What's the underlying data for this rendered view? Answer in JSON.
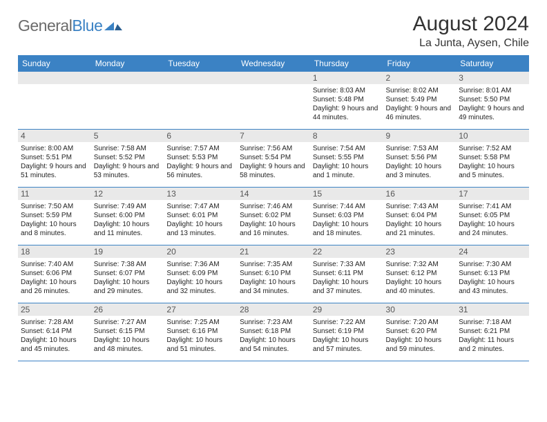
{
  "logo": {
    "part1": "General",
    "part2": "Blue"
  },
  "title": "August 2024",
  "location": "La Junta, Aysen, Chile",
  "colors": {
    "accent": "#3b82c4",
    "header_bg": "#3b82c4",
    "header_text": "#ffffff",
    "daynum_bg": "#e9e9e9",
    "text": "#222222",
    "logo_gray": "#6b6b6b"
  },
  "weekdays": [
    "Sunday",
    "Monday",
    "Tuesday",
    "Wednesday",
    "Thursday",
    "Friday",
    "Saturday"
  ],
  "weeks": [
    [
      null,
      null,
      null,
      null,
      {
        "n": "1",
        "sr": "8:03 AM",
        "ss": "5:48 PM",
        "dl": "9 hours and 44 minutes."
      },
      {
        "n": "2",
        "sr": "8:02 AM",
        "ss": "5:49 PM",
        "dl": "9 hours and 46 minutes."
      },
      {
        "n": "3",
        "sr": "8:01 AM",
        "ss": "5:50 PM",
        "dl": "9 hours and 49 minutes."
      }
    ],
    [
      {
        "n": "4",
        "sr": "8:00 AM",
        "ss": "5:51 PM",
        "dl": "9 hours and 51 minutes."
      },
      {
        "n": "5",
        "sr": "7:58 AM",
        "ss": "5:52 PM",
        "dl": "9 hours and 53 minutes."
      },
      {
        "n": "6",
        "sr": "7:57 AM",
        "ss": "5:53 PM",
        "dl": "9 hours and 56 minutes."
      },
      {
        "n": "7",
        "sr": "7:56 AM",
        "ss": "5:54 PM",
        "dl": "9 hours and 58 minutes."
      },
      {
        "n": "8",
        "sr": "7:54 AM",
        "ss": "5:55 PM",
        "dl": "10 hours and 1 minute."
      },
      {
        "n": "9",
        "sr": "7:53 AM",
        "ss": "5:56 PM",
        "dl": "10 hours and 3 minutes."
      },
      {
        "n": "10",
        "sr": "7:52 AM",
        "ss": "5:58 PM",
        "dl": "10 hours and 5 minutes."
      }
    ],
    [
      {
        "n": "11",
        "sr": "7:50 AM",
        "ss": "5:59 PM",
        "dl": "10 hours and 8 minutes."
      },
      {
        "n": "12",
        "sr": "7:49 AM",
        "ss": "6:00 PM",
        "dl": "10 hours and 11 minutes."
      },
      {
        "n": "13",
        "sr": "7:47 AM",
        "ss": "6:01 PM",
        "dl": "10 hours and 13 minutes."
      },
      {
        "n": "14",
        "sr": "7:46 AM",
        "ss": "6:02 PM",
        "dl": "10 hours and 16 minutes."
      },
      {
        "n": "15",
        "sr": "7:44 AM",
        "ss": "6:03 PM",
        "dl": "10 hours and 18 minutes."
      },
      {
        "n": "16",
        "sr": "7:43 AM",
        "ss": "6:04 PM",
        "dl": "10 hours and 21 minutes."
      },
      {
        "n": "17",
        "sr": "7:41 AM",
        "ss": "6:05 PM",
        "dl": "10 hours and 24 minutes."
      }
    ],
    [
      {
        "n": "18",
        "sr": "7:40 AM",
        "ss": "6:06 PM",
        "dl": "10 hours and 26 minutes."
      },
      {
        "n": "19",
        "sr": "7:38 AM",
        "ss": "6:07 PM",
        "dl": "10 hours and 29 minutes."
      },
      {
        "n": "20",
        "sr": "7:36 AM",
        "ss": "6:09 PM",
        "dl": "10 hours and 32 minutes."
      },
      {
        "n": "21",
        "sr": "7:35 AM",
        "ss": "6:10 PM",
        "dl": "10 hours and 34 minutes."
      },
      {
        "n": "22",
        "sr": "7:33 AM",
        "ss": "6:11 PM",
        "dl": "10 hours and 37 minutes."
      },
      {
        "n": "23",
        "sr": "7:32 AM",
        "ss": "6:12 PM",
        "dl": "10 hours and 40 minutes."
      },
      {
        "n": "24",
        "sr": "7:30 AM",
        "ss": "6:13 PM",
        "dl": "10 hours and 43 minutes."
      }
    ],
    [
      {
        "n": "25",
        "sr": "7:28 AM",
        "ss": "6:14 PM",
        "dl": "10 hours and 45 minutes."
      },
      {
        "n": "26",
        "sr": "7:27 AM",
        "ss": "6:15 PM",
        "dl": "10 hours and 48 minutes."
      },
      {
        "n": "27",
        "sr": "7:25 AM",
        "ss": "6:16 PM",
        "dl": "10 hours and 51 minutes."
      },
      {
        "n": "28",
        "sr": "7:23 AM",
        "ss": "6:18 PM",
        "dl": "10 hours and 54 minutes."
      },
      {
        "n": "29",
        "sr": "7:22 AM",
        "ss": "6:19 PM",
        "dl": "10 hours and 57 minutes."
      },
      {
        "n": "30",
        "sr": "7:20 AM",
        "ss": "6:20 PM",
        "dl": "10 hours and 59 minutes."
      },
      {
        "n": "31",
        "sr": "7:18 AM",
        "ss": "6:21 PM",
        "dl": "11 hours and 2 minutes."
      }
    ]
  ],
  "labels": {
    "sunrise": "Sunrise:",
    "sunset": "Sunset:",
    "daylight": "Daylight:"
  }
}
